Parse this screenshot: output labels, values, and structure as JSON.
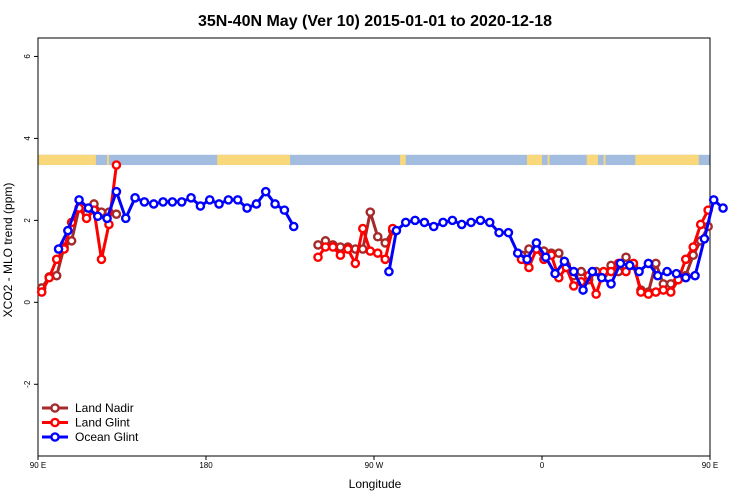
{
  "chart_data": {
    "type": "line",
    "title": "35N-40N May (Ver 10)   2015-01-01 to 2020-12-18",
    "xlabel": "Longitude",
    "ylabel": "XCO2 - MLO trend (ppm)",
    "xlim": [
      90,
      450
    ],
    "ylim": [
      -3.75,
      6.45
    ],
    "x_ticks": [
      {
        "value": 90,
        "label": "90 E"
      },
      {
        "value": 180,
        "label": "180"
      },
      {
        "value": 270,
        "label": "90 W"
      },
      {
        "value": 360,
        "label": "0"
      },
      {
        "value": 450,
        "label": "90 E"
      },
      {
        "value": 540,
        "label": "180"
      }
    ],
    "y_ticks": [
      {
        "value": -2,
        "label": "-2"
      },
      {
        "value": 0,
        "label": "0"
      },
      {
        "value": 2,
        "label": "2"
      },
      {
        "value": 4,
        "label": "4"
      },
      {
        "value": 6,
        "label": "6"
      }
    ],
    "land_ocean_strip": {
      "y_range": [
        3.35,
        3.6
      ],
      "ocean_color": "#a3bde0",
      "land_color": "#f9d87c",
      "land_segments": [
        [
          90,
          121
        ],
        [
          127,
          128
        ],
        [
          186,
          225
        ],
        [
          284,
          287
        ],
        [
          352,
          360
        ],
        [
          363,
          364
        ],
        [
          384,
          390
        ],
        [
          393,
          394
        ],
        [
          410,
          444
        ],
        [
          451,
          456
        ],
        [
          495,
          498
        ],
        [
          506,
          507
        ],
        [
          513,
          514
        ],
        [
          520,
          527
        ]
      ]
    },
    "legend": {
      "placement": "bottom-left",
      "entries": [
        {
          "label": "Land Nadir",
          "color": "#a52a2a"
        },
        {
          "label": "Land Glint",
          "color": "#ff0000"
        },
        {
          "label": "Ocean Glint",
          "color": "#0000ff"
        }
      ]
    },
    "series": [
      {
        "name": "Land Nadir",
        "color": "#a52a2a",
        "segments": [
          [
            [
              92,
              0.35
            ],
            [
              96,
              0.62
            ],
            [
              100,
              0.65
            ],
            [
              104,
              1.35
            ],
            [
              108,
              1.5
            ],
            [
              112,
              2.3
            ],
            [
              116,
              2.15
            ],
            [
              120,
              2.4
            ],
            [
              124,
              2.2
            ],
            [
              128,
              2.2
            ],
            [
              132,
              2.15
            ]
          ],
          [
            [
              240,
              1.4
            ],
            [
              244,
              1.5
            ],
            [
              248,
              1.4
            ],
            [
              252,
              1.35
            ],
            [
              256,
              1.35
            ],
            [
              260,
              1.3
            ],
            [
              264,
              1.3
            ],
            [
              268,
              2.2
            ],
            [
              272,
              1.6
            ],
            [
              276,
              1.45
            ],
            [
              280,
              1.75
            ]
          ],
          [
            [
              349,
              1.15
            ],
            [
              353,
              1.3
            ],
            [
              357,
              1.3
            ],
            [
              361,
              1.25
            ],
            [
              365,
              1.2
            ],
            [
              369,
              1.2
            ],
            [
              373,
              0.9
            ],
            [
              377,
              0.65
            ],
            [
              381,
              0.75
            ],
            [
              385,
              0.55
            ],
            [
              389,
              0.75
            ],
            [
              393,
              0.7
            ],
            [
              397,
              0.9
            ],
            [
              401,
              0.75
            ],
            [
              405,
              1.1
            ],
            [
              409,
              0.9
            ],
            [
              413,
              0.3
            ],
            [
              417,
              0.25
            ],
            [
              421,
              0.95
            ],
            [
              425,
              0.45
            ],
            [
              429,
              0.45
            ],
            [
              433,
              0.65
            ],
            [
              437,
              0.65
            ],
            [
              441,
              1.15
            ],
            [
              445,
              1.5
            ],
            [
              449,
              1.85
            ]
          ]
        ]
      },
      {
        "name": "Land Glint",
        "color": "#ff0000",
        "segments": [
          [
            [
              92,
              0.25
            ],
            [
              96,
              0.6
            ],
            [
              100,
              1.05
            ],
            [
              104,
              1.3
            ],
            [
              108,
              1.95
            ],
            [
              112,
              2.3
            ],
            [
              116,
              2.05
            ],
            [
              120,
              2.25
            ],
            [
              124,
              1.05
            ],
            [
              128,
              1.9
            ],
            [
              132,
              3.35
            ]
          ],
          [
            [
              240,
              1.1
            ],
            [
              244,
              1.35
            ],
            [
              248,
              1.35
            ],
            [
              252,
              1.15
            ],
            [
              256,
              1.3
            ],
            [
              260,
              0.95
            ],
            [
              264,
              1.8
            ],
            [
              268,
              1.25
            ],
            [
              272,
              1.2
            ],
            [
              276,
              1.05
            ],
            [
              280,
              1.8
            ]
          ],
          [
            [
              349,
              1.05
            ],
            [
              353,
              0.85
            ],
            [
              357,
              1.3
            ],
            [
              361,
              1.05
            ],
            [
              365,
              1.15
            ],
            [
              369,
              0.6
            ],
            [
              373,
              0.85
            ],
            [
              377,
              0.4
            ],
            [
              381,
              0.5
            ],
            [
              385,
              0.65
            ],
            [
              389,
              0.2
            ],
            [
              393,
              0.75
            ],
            [
              397,
              0.75
            ],
            [
              401,
              0.95
            ],
            [
              405,
              0.75
            ],
            [
              409,
              0.95
            ],
            [
              413,
              0.25
            ],
            [
              417,
              0.2
            ],
            [
              421,
              0.25
            ],
            [
              425,
              0.3
            ],
            [
              429,
              0.25
            ],
            [
              433,
              0.55
            ],
            [
              437,
              1.05
            ],
            [
              441,
              1.35
            ],
            [
              445,
              1.9
            ],
            [
              449,
              2.25
            ]
          ]
        ]
      },
      {
        "name": "Ocean Glint",
        "color": "#0000ff",
        "segments": [
          [
            [
              101,
              1.3
            ],
            [
              106,
              1.75
            ],
            [
              112,
              2.5
            ],
            [
              117,
              2.3
            ],
            [
              122,
              2.1
            ],
            [
              127,
              2.05
            ],
            [
              132,
              2.7
            ],
            [
              137,
              2.05
            ],
            [
              142,
              2.55
            ],
            [
              147,
              2.45
            ],
            [
              152,
              2.4
            ],
            [
              157,
              2.45
            ],
            [
              162,
              2.45
            ],
            [
              167,
              2.45
            ],
            [
              172,
              2.55
            ],
            [
              177,
              2.35
            ],
            [
              182,
              2.5
            ],
            [
              187,
              2.4
            ],
            [
              192,
              2.5
            ],
            [
              197,
              2.5
            ],
            [
              202,
              2.3
            ],
            [
              207,
              2.4
            ],
            [
              212,
              2.7
            ],
            [
              217,
              2.4
            ],
            [
              222,
              2.25
            ],
            [
              227,
              1.85
            ]
          ],
          [
            [
              278,
              0.75
            ],
            [
              282,
              1.75
            ],
            [
              287,
              1.95
            ],
            [
              292,
              2.0
            ],
            [
              297,
              1.95
            ],
            [
              302,
              1.85
            ],
            [
              307,
              1.95
            ],
            [
              312,
              2.0
            ],
            [
              317,
              1.9
            ],
            [
              322,
              1.95
            ],
            [
              327,
              2.0
            ],
            [
              332,
              1.95
            ],
            [
              337,
              1.7
            ],
            [
              342,
              1.7
            ],
            [
              347,
              1.2
            ],
            [
              352,
              1.05
            ],
            [
              357,
              1.45
            ],
            [
              362,
              1.1
            ],
            [
              367,
              0.7
            ],
            [
              372,
              1.0
            ],
            [
              377,
              0.75
            ],
            [
              382,
              0.3
            ],
            [
              387,
              0.75
            ],
            [
              392,
              0.6
            ],
            [
              397,
              0.45
            ],
            [
              402,
              0.95
            ],
            [
              407,
              0.9
            ],
            [
              412,
              0.75
            ],
            [
              417,
              0.95
            ],
            [
              422,
              0.65
            ],
            [
              427,
              0.75
            ],
            [
              432,
              0.7
            ],
            [
              437,
              0.6
            ],
            [
              442,
              0.65
            ],
            [
              447,
              1.55
            ],
            [
              452,
              2.5
            ],
            [
              457,
              2.3
            ]
          ]
        ]
      }
    ]
  }
}
